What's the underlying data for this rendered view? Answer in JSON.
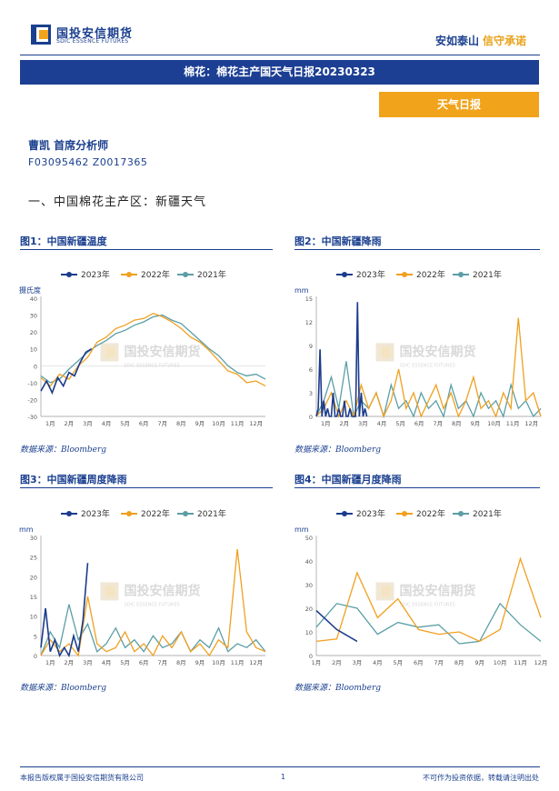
{
  "header": {
    "logo_cn": "国投安信期货",
    "logo_en": "SDIC ESSENCE FUTURES",
    "slogan_part1": "安如泰山",
    "slogan_part2": "信守承诺"
  },
  "title": "棉花：棉花主产国天气日报20230323",
  "tag": "天气日报",
  "author": "曹凯 首席分析师",
  "license": "F03095462 Z0017365",
  "section": "一、中国棉花主产区：新疆天气",
  "watermark": {
    "cn": "国投安信期货",
    "en": "SDIC ESSENCE FUTURES"
  },
  "colors": {
    "s2023": "#1b3c8c",
    "s2022": "#f0a020",
    "s2021": "#5b9ea6",
    "brand": "#1a3f8f",
    "accent": "#f0a31b"
  },
  "footer": {
    "left": "本报告版权属于国投安信期货有限公司",
    "page": "1",
    "right": "不可作为投资依据，转载请注明出处"
  },
  "chart_data": [
    {
      "id": "fig1",
      "type": "line",
      "title": "图1：中国新疆温度",
      "ylabel": "摄氏度",
      "source": "数据来源：Bloomberg",
      "ylim": [
        -30,
        40
      ],
      "yticks": [
        -30,
        -20,
        -10,
        0,
        10,
        20,
        30,
        40
      ],
      "xlim": [
        0,
        12
      ],
      "categories": [
        "1月",
        "2月",
        "3月",
        "4月",
        "5月",
        "6月",
        "7月",
        "8月",
        "9月",
        "10月",
        "11月",
        "12月"
      ],
      "legend": "top",
      "series": [
        {
          "name": "2023年",
          "x": [
            0,
            0.3,
            0.6,
            0.9,
            1.2,
            1.5,
            1.8,
            2.1,
            2.4,
            2.7
          ],
          "values": [
            -15,
            -9,
            -16,
            -7,
            -12,
            -4,
            -6,
            2,
            8,
            10
          ]
        },
        {
          "name": "2022年",
          "x": [
            0,
            0.5,
            1,
            1.5,
            2,
            2.5,
            3,
            3.5,
            4,
            4.5,
            5,
            5.5,
            6,
            6.5,
            7,
            7.5,
            8,
            8.5,
            9,
            9.5,
            10,
            10.5,
            11,
            11.5,
            12
          ],
          "values": [
            -7,
            -12,
            -5,
            -8,
            0,
            5,
            14,
            17,
            22,
            24,
            27,
            28,
            31,
            29,
            26,
            22,
            17,
            14,
            9,
            3,
            -3,
            -5,
            -10,
            -9,
            -12
          ]
        },
        {
          "name": "2021年",
          "x": [
            0,
            0.5,
            1,
            1.5,
            2,
            2.5,
            3,
            3.5,
            4,
            4.5,
            5,
            5.5,
            6,
            6.5,
            7,
            7.5,
            8,
            8.5,
            9,
            9.5,
            10,
            10.5,
            11,
            11.5,
            12
          ],
          "values": [
            -6,
            -10,
            -8,
            -2,
            3,
            8,
            12,
            15,
            19,
            21,
            24,
            26,
            29,
            30,
            27,
            25,
            20,
            15,
            10,
            6,
            0,
            -4,
            -6,
            -5,
            -8
          ]
        }
      ]
    },
    {
      "id": "fig2",
      "type": "line",
      "title": "图2：中国新疆降雨",
      "ylabel": "mm",
      "source": "数据来源：Bloomberg",
      "ylim": [
        0,
        15
      ],
      "yticks": [
        0,
        3,
        6,
        9,
        12,
        15
      ],
      "xlim": [
        0,
        12
      ],
      "categories": [
        "1月",
        "2月",
        "3月",
        "4月",
        "5月",
        "6月",
        "7月",
        "8月",
        "9月",
        "10月",
        "11月",
        "12月"
      ],
      "legend": "top",
      "series": [
        {
          "name": "2023年",
          "x": [
            0,
            0.1,
            0.2,
            0.3,
            0.4,
            0.5,
            0.6,
            0.7,
            0.8,
            0.9,
            1.0,
            1.1,
            1.2,
            1.3,
            1.4,
            1.5,
            1.6,
            1.7,
            1.8,
            1.9,
            2.0,
            2.1,
            2.2,
            2.3,
            2.4,
            2.5,
            2.6,
            2.7
          ],
          "values": [
            0,
            1,
            8.5,
            0,
            2,
            0,
            1,
            0,
            0,
            3,
            0,
            0,
            1,
            0,
            0,
            2,
            0,
            0,
            1,
            0,
            0,
            0,
            14.5,
            0,
            3,
            0,
            1,
            0
          ]
        },
        {
          "name": "2022年",
          "x": [
            0,
            0.4,
            0.8,
            1.2,
            1.6,
            2.0,
            2.4,
            2.8,
            3.2,
            3.6,
            4.0,
            4.4,
            4.8,
            5.2,
            5.6,
            6.0,
            6.4,
            6.8,
            7.2,
            7.6,
            8.0,
            8.4,
            8.8,
            9.2,
            9.6,
            10.0,
            10.4,
            10.8,
            11.2,
            11.6,
            12.0
          ],
          "values": [
            0,
            1,
            3,
            0,
            2,
            0,
            4,
            1,
            3,
            0,
            2,
            6,
            1,
            3,
            0,
            2,
            4,
            1,
            3,
            0,
            2,
            5,
            1,
            2,
            0,
            3,
            1,
            12.5,
            2,
            3,
            0
          ]
        },
        {
          "name": "2021年",
          "x": [
            0,
            0.4,
            0.8,
            1.2,
            1.6,
            2.0,
            2.4,
            2.8,
            3.2,
            3.6,
            4.0,
            4.4,
            4.8,
            5.2,
            5.6,
            6.0,
            6.4,
            6.8,
            7.2,
            7.6,
            8.0,
            8.4,
            8.8,
            9.2,
            9.6,
            10.0,
            10.4,
            10.8,
            11.2,
            11.6,
            12.0
          ],
          "values": [
            0,
            2,
            5,
            1,
            7,
            0,
            2,
            1,
            3,
            0,
            4,
            1,
            2,
            0,
            3,
            1,
            2,
            0,
            4,
            1,
            2,
            0,
            3,
            1,
            2,
            0,
            4,
            1,
            2,
            0,
            1
          ]
        }
      ]
    },
    {
      "id": "fig3",
      "type": "line",
      "title": "图3：中国新疆周度降雨",
      "ylabel": "mm",
      "source": "数据来源：Bloomberg",
      "ylim": [
        0,
        30
      ],
      "yticks": [
        0,
        5,
        10,
        15,
        20,
        25,
        30
      ],
      "xlim": [
        0,
        12
      ],
      "categories": [
        "1月",
        "2月",
        "3月",
        "4月",
        "5月",
        "6月",
        "7月",
        "8月",
        "9月",
        "10月",
        "11月",
        "12月"
      ],
      "legend": "top",
      "series": [
        {
          "name": "2023年",
          "x": [
            0,
            0.25,
            0.5,
            0.75,
            1.0,
            1.25,
            1.5,
            1.75,
            2.0,
            2.25,
            2.5
          ],
          "values": [
            2,
            12,
            1,
            4,
            0,
            2,
            0,
            5,
            1,
            9,
            23.5
          ]
        },
        {
          "name": "2022年",
          "x": [
            0,
            0.5,
            1,
            1.5,
            2,
            2.5,
            3,
            3.5,
            4,
            4.5,
            5,
            5.5,
            6,
            6.5,
            7,
            7.5,
            8,
            8.5,
            9,
            9.5,
            10,
            10.5,
            11,
            11.5,
            12
          ],
          "values": [
            0,
            4,
            1,
            3,
            0,
            15,
            3,
            1,
            2,
            6,
            1,
            3,
            0,
            5,
            2,
            6,
            1,
            3,
            0,
            4,
            2,
            27,
            6,
            2,
            1
          ]
        },
        {
          "name": "2021年",
          "x": [
            0,
            0.5,
            1,
            1.5,
            2,
            2.5,
            3,
            3.5,
            4,
            4.5,
            5,
            5.5,
            6,
            6.5,
            7,
            7.5,
            8,
            8.5,
            9,
            9.5,
            10,
            10.5,
            11,
            11.5,
            12
          ],
          "values": [
            0,
            6,
            2,
            13,
            4,
            8,
            1,
            3,
            7,
            2,
            4,
            1,
            5,
            2,
            3,
            6,
            1,
            4,
            2,
            7,
            1,
            3,
            2,
            4,
            1
          ]
        }
      ]
    },
    {
      "id": "fig4",
      "type": "line",
      "title": "图4：中国新疆月度降雨",
      "ylabel": "mm",
      "source": "数据来源：Bloomberg",
      "ylim": [
        0,
        50
      ],
      "yticks": [
        0,
        10,
        20,
        30,
        40,
        50
      ],
      "xlim": [
        0,
        11
      ],
      "categories": [
        "1月",
        "2月",
        "3月",
        "4月",
        "5月",
        "6月",
        "7月",
        "8月",
        "9月",
        "10月",
        "11月",
        "12月"
      ],
      "legend": "top",
      "series": [
        {
          "name": "2023年",
          "x": [
            0,
            1,
            2
          ],
          "values": [
            19,
            11,
            6
          ]
        },
        {
          "name": "2022年",
          "x": [
            0,
            1,
            2,
            3,
            4,
            5,
            6,
            7,
            8,
            9,
            10,
            11
          ],
          "values": [
            6,
            7,
            35,
            16,
            24,
            11,
            9,
            10,
            6,
            11,
            41,
            16
          ]
        },
        {
          "name": "2021年",
          "x": [
            0,
            1,
            2,
            3,
            4,
            5,
            6,
            7,
            8,
            9,
            10,
            11
          ],
          "values": [
            12,
            22,
            20,
            9,
            14,
            12,
            13,
            5,
            6,
            22,
            13,
            6
          ]
        }
      ]
    }
  ]
}
